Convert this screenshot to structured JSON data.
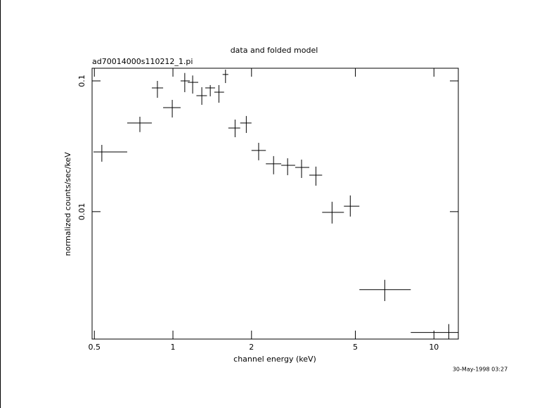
{
  "chart_data": {
    "type": "errorbar",
    "title": "data and folded model",
    "subtitle": "ad70014000s110212_1.pi",
    "x_label": "channel energy (keV)",
    "y_label": "normalized counts/sec/keV",
    "timestamp": "30-May-1998 03:27",
    "log_x": true,
    "log_y": true,
    "xlim": [
      0.49,
      12.4
    ],
    "ylim": [
      0.00106,
      0.125
    ],
    "xticks": [
      0.5,
      1,
      2,
      5,
      10
    ],
    "yticks": [
      0.01,
      0.1
    ],
    "color": "#000000",
    "x": [
      0.534,
      0.747,
      0.872,
      0.994,
      1.11,
      1.19,
      1.29,
      1.39,
      1.5,
      1.59,
      1.73,
      1.91,
      2.13,
      2.43,
      2.75,
      3.11,
      3.53,
      4.07,
      4.78,
      6.48,
      11.4
    ],
    "x_lo": [
      0.496,
      0.668,
      0.83,
      0.917,
      1.07,
      1.14,
      1.23,
      1.33,
      1.44,
      1.55,
      1.63,
      1.81,
      2.0,
      2.27,
      2.6,
      2.94,
      3.33,
      3.73,
      4.52,
      5.18,
      8.15
    ],
    "x_hi": [
      0.668,
      0.83,
      0.917,
      1.07,
      1.16,
      1.25,
      1.35,
      1.45,
      1.57,
      1.63,
      1.81,
      2.0,
      2.27,
      2.6,
      2.94,
      3.33,
      3.73,
      4.52,
      5.18,
      8.15,
      12.4
    ],
    "values": [
      0.0286,
      0.0476,
      0.0884,
      0.0625,
      0.1,
      0.0975,
      0.0771,
      0.0884,
      0.082,
      0.112,
      0.0436,
      0.0476,
      0.0294,
      0.0232,
      0.0226,
      0.0218,
      0.019,
      0.00988,
      0.011,
      0.00253,
      0.00119
    ],
    "y_lo": [
      0.0241,
      0.0406,
      0.0743,
      0.0525,
      0.082,
      0.08,
      0.0656,
      0.0762,
      0.0681,
      0.0963,
      0.0371,
      0.04,
      0.0247,
      0.0193,
      0.019,
      0.0181,
      0.0158,
      0.00811,
      0.00917,
      0.00207,
      0.00106
    ],
    "y_hi": [
      0.0324,
      0.0532,
      0.1,
      0.0716,
      0.115,
      0.11,
      0.0895,
      0.0929,
      0.0929,
      0.122,
      0.0506,
      0.0539,
      0.0336,
      0.0266,
      0.0256,
      0.025,
      0.0221,
      0.0119,
      0.0133,
      0.00301,
      0.00138
    ]
  }
}
